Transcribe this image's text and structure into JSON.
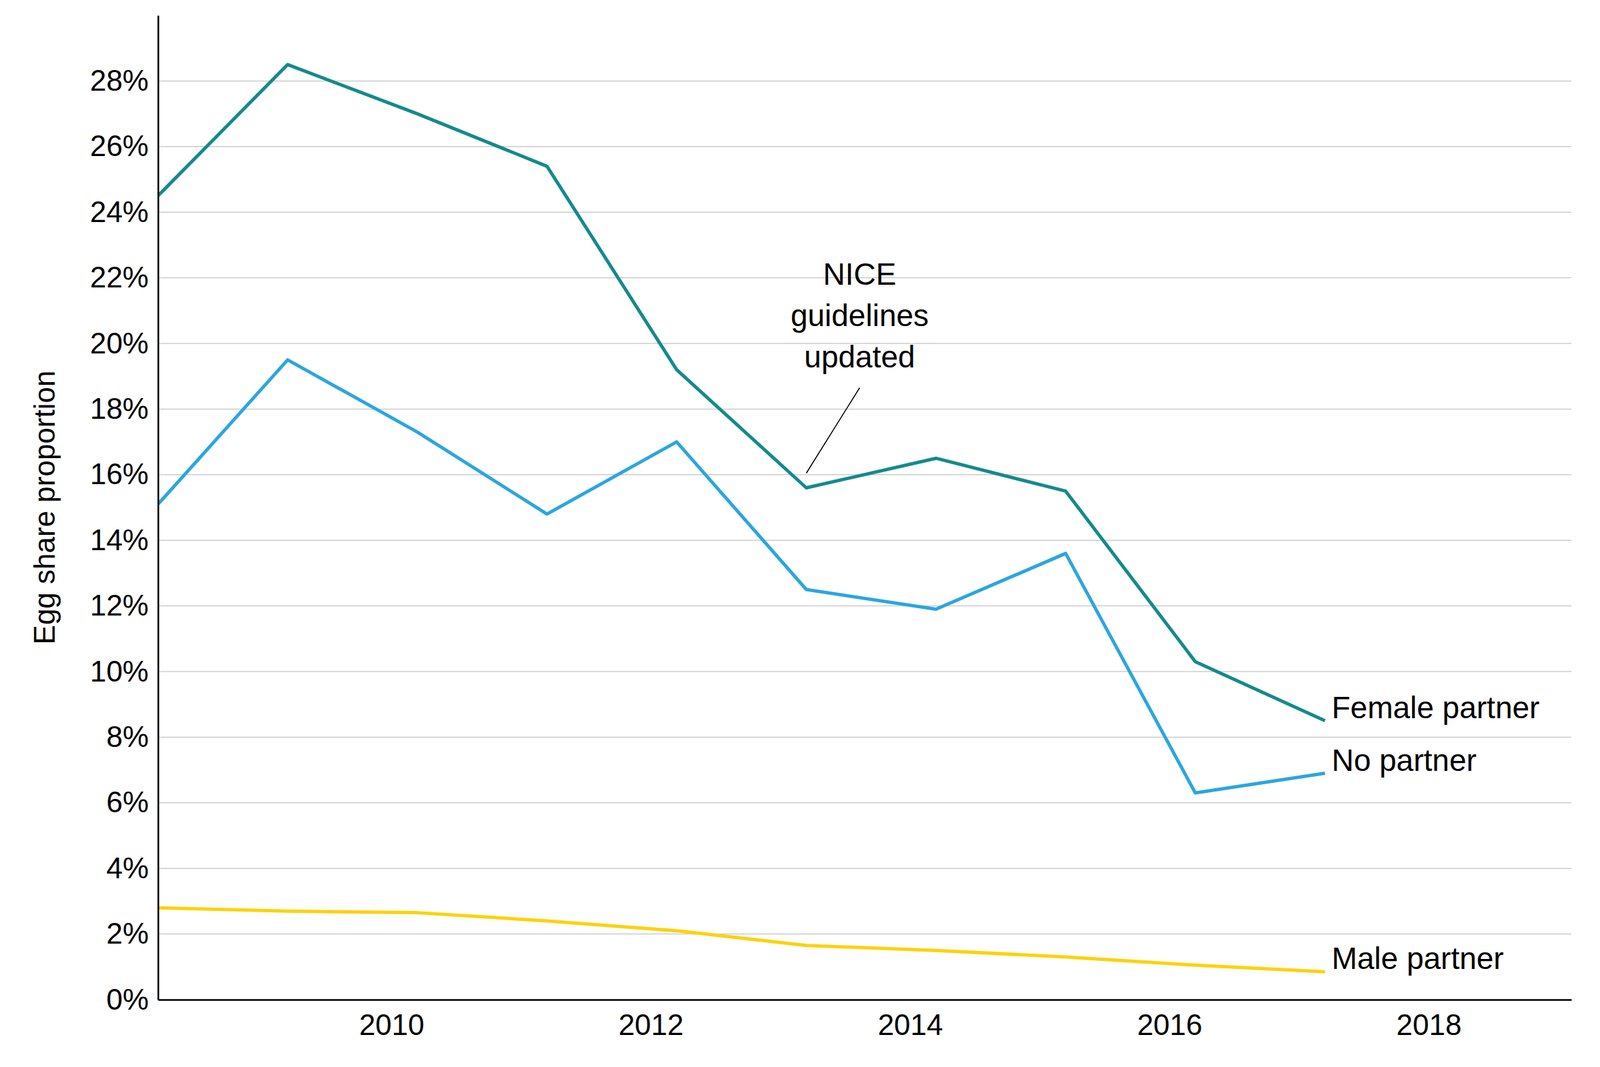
{
  "chart_data": {
    "type": "line",
    "y_label": "Egg share proportion",
    "x": [
      2008.2,
      2009.2,
      2010.2,
      2011.2,
      2012.2,
      2013.2,
      2014.2,
      2015.2,
      2016.2,
      2017.2
    ],
    "series": [
      {
        "name": "Female partner",
        "color": "#148a8a",
        "values": [
          24.5,
          28.5,
          27.0,
          25.4,
          19.2,
          15.6,
          16.5,
          15.5,
          10.3,
          8.5
        ]
      },
      {
        "name": "No partner",
        "color": "#2ba6de",
        "values": [
          15.1,
          19.5,
          17.3,
          14.8,
          17.0,
          12.5,
          11.9,
          13.6,
          6.3,
          6.9
        ]
      },
      {
        "name": "Male partner",
        "color": "#fcd20c",
        "values": [
          2.8,
          2.7,
          2.65,
          2.4,
          2.1,
          1.65,
          1.5,
          1.3,
          1.05,
          0.85
        ]
      }
    ],
    "xlim": [
      2008.2,
      2019.1
    ],
    "xticks": [
      2010,
      2012,
      2014,
      2016,
      2018
    ],
    "ylim": [
      0,
      30
    ],
    "yticks": [
      {
        "value": 0,
        "label": "0%"
      },
      {
        "value": 2,
        "label": "2%"
      },
      {
        "value": 4,
        "label": "4%"
      },
      {
        "value": 6,
        "label": "6%"
      },
      {
        "value": 8,
        "label": "8%"
      },
      {
        "value": 10,
        "label": "10%"
      },
      {
        "value": 12,
        "label": "12%"
      },
      {
        "value": 14,
        "label": "14%"
      },
      {
        "value": 16,
        "label": "16%"
      },
      {
        "value": 18,
        "label": "18%"
      },
      {
        "value": 20,
        "label": "20%"
      },
      {
        "value": 22,
        "label": "22%"
      },
      {
        "value": 24,
        "label": "24%"
      },
      {
        "value": 26,
        "label": "26%"
      },
      {
        "value": 28,
        "label": "28%"
      }
    ],
    "grid": true,
    "annotations": [
      {
        "text": "NICE guidelines updated",
        "x": 2013.2,
        "y": 15.6
      }
    ]
  }
}
